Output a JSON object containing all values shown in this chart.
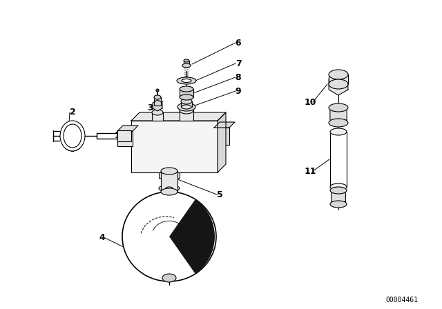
{
  "bg_color": "#ffffff",
  "line_color": "#000000",
  "fill_color": "#ffffff",
  "dark_fill": "#1a1a1a",
  "mid_fill": "#888888",
  "light_fill": "#cccccc",
  "part_number_id": "00004461",
  "figsize": [
    6.4,
    4.48
  ],
  "dpi": 100
}
